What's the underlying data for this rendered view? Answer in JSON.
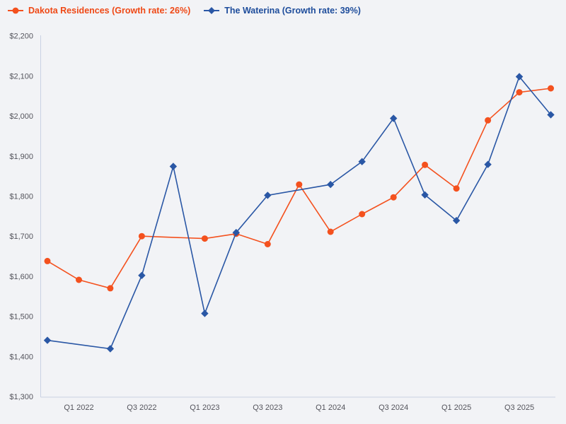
{
  "page": {
    "background_color": "#f2f3f6",
    "axis_color": "#c9d1e3",
    "tick_label_color": "#54545c"
  },
  "legend": {
    "position": "top-left",
    "items": [
      {
        "label": "Dakota Residences (Growth rate: 26%)",
        "marker": "circle",
        "color": "#f4511e",
        "text_color": "#ef4815"
      },
      {
        "label": "The Waterina (Growth rate: 39%)",
        "marker": "diamond",
        "color": "#2a57a5",
        "text_color": "#1d4c9b"
      }
    ]
  },
  "chart_data": {
    "type": "line",
    "title": "",
    "xlabel": "",
    "ylabel": "",
    "grid": false,
    "legend_position": "top-left",
    "ylim": [
      1300,
      2200
    ],
    "y_tick_step": 100,
    "y_tick_labels": [
      "$1,300",
      "$1,400",
      "$1,500",
      "$1,600",
      "$1,700",
      "$1,800",
      "$1,900",
      "$2,000",
      "$2,100",
      "$2,200"
    ],
    "x_tick_labels": [
      "Q1 2022",
      "Q3 2022",
      "Q1 2023",
      "Q3 2023",
      "Q1 2024",
      "Q3 2024",
      "Q1 2025",
      "Q3 2025"
    ],
    "categories": [
      "Q4 2021",
      "Q1 2022",
      "Q2 2022",
      "Q3 2022",
      "Q4 2022",
      "Q1 2023",
      "Q2 2023",
      "Q3 2023",
      "Q4 2023",
      "Q1 2024",
      "Q2 2024",
      "Q3 2024",
      "Q4 2024",
      "Q1 2025",
      "Q2 2025",
      "Q3 2025",
      "Q4 2025"
    ],
    "series": [
      {
        "name": "Dakota Residences (Growth rate: 26%)",
        "growth_rate": "26%",
        "marker": "circle",
        "color": "#f4511e",
        "values": [
          1638,
          1591,
          1570,
          1700,
          null,
          1694,
          1706,
          1680,
          1829,
          1711,
          1755,
          1797,
          1878,
          1819,
          1989,
          2059,
          2069
        ]
      },
      {
        "name": "The Waterina (Growth rate: 39%)",
        "growth_rate": "39%",
        "marker": "diamond",
        "color": "#2a57a5",
        "values": [
          1440,
          null,
          1419,
          1602,
          1874,
          1507,
          1709,
          1802,
          null,
          1829,
          1886,
          1994,
          1803,
          1739,
          1879,
          2098,
          2003
        ]
      }
    ]
  }
}
